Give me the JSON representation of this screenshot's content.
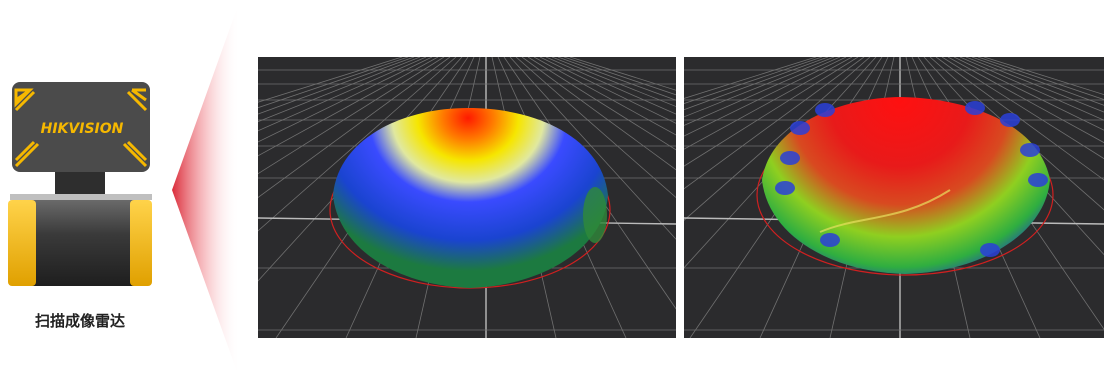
{
  "device": {
    "brand": "HIKVISION",
    "caption": "扫描成像雷达"
  }
}
